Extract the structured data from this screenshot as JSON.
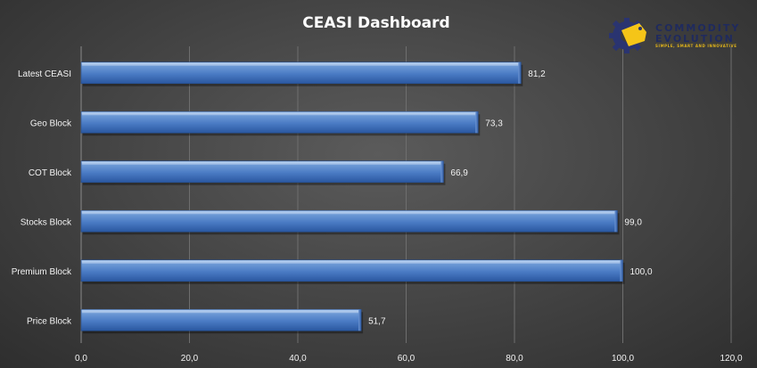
{
  "chart_data": {
    "type": "bar",
    "orientation": "horizontal",
    "title": "CEASI Dashboard",
    "categories": [
      "Latest CEASI",
      "Geo Block",
      "COT Block",
      "Stocks Block",
      "Premium Block",
      "Price Block"
    ],
    "values": [
      81.2,
      73.3,
      66.9,
      99.0,
      100.0,
      51.7
    ],
    "data_labels": [
      "81,2",
      "73,3",
      "66,9",
      "99,0",
      "100,0",
      "51,7"
    ],
    "x_ticks": [
      0,
      20,
      40,
      60,
      80,
      100,
      120
    ],
    "x_tick_labels": [
      "0,0",
      "20,0",
      "40,0",
      "60,0",
      "80,0",
      "100,0",
      "120,0"
    ],
    "xlim": [
      0,
      120
    ],
    "grid": true,
    "legend": "none",
    "colors": {
      "bar": "#4f81bd",
      "bar_light": "#8db3e2",
      "bar_dark": "#2c5aa0",
      "gridline": "#6e6e6e",
      "text": "#f2f2f2"
    }
  },
  "logo": {
    "line1": "COMMODITY",
    "line2": "EVOLUTION",
    "tagline": "SIMPLE, SMART AND INNOVATIVE",
    "icon": "gear-tag-icon",
    "colors": {
      "gear": "#2a3470",
      "tag": "#f5c518"
    }
  }
}
